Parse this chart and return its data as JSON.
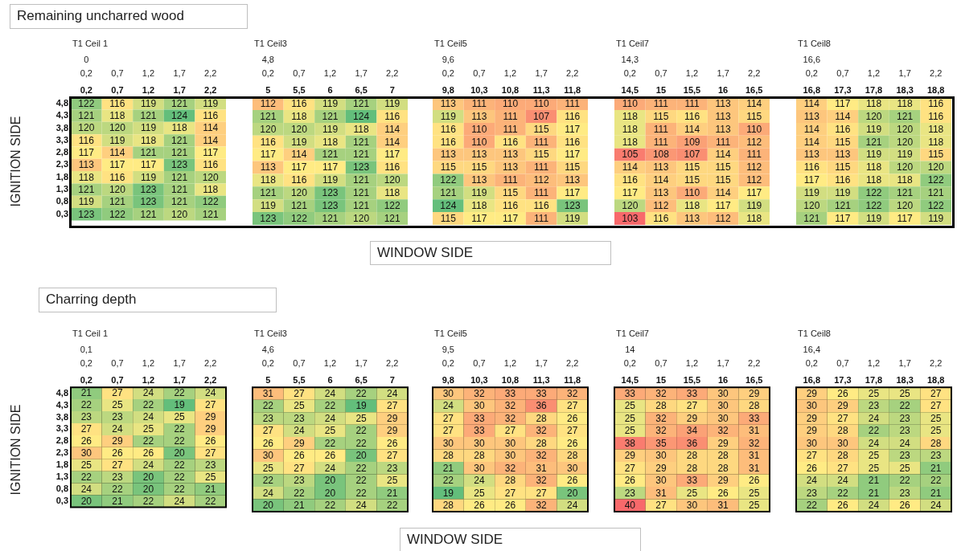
{
  "chart_data": [
    {
      "type": "heatmap",
      "title": "Remaining uncharred wood",
      "ylabel": "IGNITION SIDE",
      "subtitle": "T1 Ceil 1",
      "annotations": [
        "0",
        "0,2",
        "0,7",
        "1,2",
        "1,7",
        "2,2"
      ],
      "categories": [
        "0,2",
        "0,7",
        "1,2",
        "1,7",
        "2,2"
      ],
      "y_categories": [
        "4,8",
        "4,3",
        "3,8",
        "3,3",
        "2,8",
        "2,3",
        "1,8",
        "1,3",
        "0,8",
        "0,3"
      ],
      "data_labels": true,
      "grid": false,
      "colors": [
        "#f8696b",
        "#ffeb84",
        "#63be7b"
      ],
      "cells": [
        [
          122,
          116,
          119,
          121,
          119
        ],
        [
          121,
          118,
          121,
          124,
          116
        ],
        [
          120,
          120,
          119,
          118,
          114
        ],
        [
          116,
          119,
          118,
          121,
          114
        ],
        [
          117,
          114,
          121,
          121,
          117
        ],
        [
          113,
          117,
          117,
          123,
          116
        ],
        [
          118,
          116,
          119,
          121,
          120
        ],
        [
          121,
          120,
          123,
          121,
          118
        ],
        [
          119,
          121,
          123,
          121,
          122
        ],
        [
          123,
          122,
          121,
          120,
          121
        ]
      ]
    },
    {
      "type": "heatmap",
      "subtitle": "T1 Ceil3",
      "annotations": [
        "4,8",
        "0,2",
        "0,7",
        "1,2",
        "1,7",
        "2,2"
      ],
      "categories": [
        "5",
        "5,5",
        "6",
        "6,5",
        "7"
      ],
      "y_categories": [
        "4,8",
        "4,3",
        "3,8",
        "3,3",
        "2,8",
        "2,3",
        "1,8",
        "1,3",
        "0,8",
        "0,3"
      ],
      "tick_labels": "x",
      "data_labels": true,
      "grid": false,
      "colors": [
        "#f8696b",
        "#ffeb84",
        "#63be7b"
      ],
      "cells": [
        [
          112,
          116,
          119,
          121,
          119
        ],
        [
          121,
          118,
          121,
          124,
          116
        ],
        [
          120,
          120,
          119,
          118,
          114
        ],
        [
          116,
          119,
          118,
          121,
          114
        ],
        [
          117,
          114,
          121,
          121,
          117
        ],
        [
          113,
          117,
          117,
          123,
          116
        ],
        [
          118,
          116,
          119,
          121,
          120
        ],
        [
          121,
          120,
          123,
          121,
          118
        ],
        [
          119,
          121,
          123,
          121,
          122
        ],
        [
          123,
          122,
          121,
          120,
          121
        ]
      ]
    },
    {
      "type": "heatmap",
      "xlabel": "WINDOW SIDE",
      "subtitle": "T1 Ceil5",
      "annotations": [
        "9,6",
        "0,2",
        "0,7",
        "1,2",
        "1,7",
        "2,2"
      ],
      "categories": [
        "9,8",
        "10,3",
        "10,8",
        "11,3",
        "11,8"
      ],
      "y_categories": [
        "4,8",
        "4,3",
        "3,8",
        "3,3",
        "2,8",
        "2,3",
        "1,8",
        "1,3",
        "0,8",
        "0,3"
      ],
      "tick_labels": "x",
      "data_labels": true,
      "grid": false,
      "colors": [
        "#f8696b",
        "#ffeb84",
        "#63be7b"
      ],
      "cells": [
        [
          113,
          111,
          110,
          110,
          111
        ],
        [
          119,
          113,
          111,
          107,
          116
        ],
        [
          116,
          110,
          111,
          115,
          117
        ],
        [
          116,
          110,
          116,
          111,
          116
        ],
        [
          113,
          113,
          113,
          115,
          117
        ],
        [
          115,
          115,
          113,
          111,
          115
        ],
        [
          122,
          113,
          111,
          112,
          113
        ],
        [
          121,
          119,
          115,
          111,
          117
        ],
        [
          124,
          118,
          116,
          116,
          123
        ],
        [
          115,
          117,
          117,
          111,
          119
        ]
      ]
    },
    {
      "type": "heatmap",
      "subtitle": "T1 Ceil7",
      "annotations": [
        "14,3",
        "0,2",
        "0,7",
        "1,2",
        "1,7",
        "2,2"
      ],
      "categories": [
        "14,5",
        "15",
        "15,5",
        "16",
        "16,5"
      ],
      "y_categories": [
        "4,8",
        "4,3",
        "3,8",
        "3,3",
        "2,8",
        "2,3",
        "1,8",
        "1,3",
        "0,8",
        "0,3"
      ],
      "tick_labels": "x",
      "data_labels": true,
      "grid": false,
      "colors": [
        "#f8696b",
        "#ffeb84",
        "#63be7b"
      ],
      "cells": [
        [
          110,
          111,
          111,
          113,
          114
        ],
        [
          118,
          115,
          116,
          113,
          115
        ],
        [
          118,
          111,
          114,
          113,
          110
        ],
        [
          118,
          111,
          109,
          111,
          112
        ],
        [
          105,
          108,
          107,
          114,
          111
        ],
        [
          114,
          113,
          115,
          115,
          112
        ],
        [
          116,
          114,
          115,
          115,
          112
        ],
        [
          117,
          113,
          110,
          114,
          117
        ],
        [
          120,
          112,
          118,
          117,
          119
        ],
        [
          103,
          116,
          113,
          112,
          118
        ]
      ]
    },
    {
      "type": "heatmap",
      "subtitle": "T1 Ceil8",
      "annotations": [
        "16,6",
        "0,2",
        "0,7",
        "1,2",
        "1,7",
        "2,2"
      ],
      "categories": [
        "16,8",
        "17,3",
        "17,8",
        "18,3",
        "18,8"
      ],
      "y_categories": [
        "4,8",
        "4,3",
        "3,8",
        "3,3",
        "2,8",
        "2,3",
        "1,8",
        "1,3",
        "0,8",
        "0,3"
      ],
      "tick_labels": "x",
      "data_labels": true,
      "grid": false,
      "colors": [
        "#f8696b",
        "#ffeb84",
        "#63be7b"
      ],
      "cells": [
        [
          114,
          117,
          118,
          118,
          116
        ],
        [
          113,
          114,
          120,
          121,
          116
        ],
        [
          114,
          116,
          119,
          120,
          118
        ],
        [
          114,
          115,
          121,
          120,
          118
        ],
        [
          113,
          113,
          119,
          119,
          115
        ],
        [
          116,
          115,
          118,
          120,
          120
        ],
        [
          117,
          116,
          118,
          118,
          122
        ],
        [
          119,
          119,
          122,
          121,
          121
        ],
        [
          120,
          121,
          122,
          120,
          122
        ],
        [
          121,
          117,
          119,
          117,
          119
        ]
      ]
    },
    {
      "type": "heatmap",
      "title": "Charring depth",
      "ylabel": "IGNITION SIDE",
      "subtitle": "T1 Ceil 1",
      "annotations": [
        "0,1",
        "0,2",
        "0,7",
        "1,2",
        "1,7",
        "2,2"
      ],
      "categories": [
        "0,2",
        "0,7",
        "1,2",
        "1,7",
        "2,2"
      ],
      "y_categories": [
        "4,8",
        "4,3",
        "3,8",
        "3,3",
        "2,8",
        "2,3",
        "1,8",
        "1,3",
        "0,8",
        "0,3"
      ],
      "data_labels": true,
      "grid": true,
      "colors": [
        "#63be7b",
        "#ffeb84",
        "#f8696b"
      ],
      "cells": [
        [
          21,
          27,
          24,
          22,
          24
        ],
        [
          22,
          25,
          22,
          19,
          27
        ],
        [
          23,
          23,
          24,
          25,
          29
        ],
        [
          27,
          24,
          25,
          22,
          29
        ],
        [
          26,
          29,
          22,
          22,
          26
        ],
        [
          30,
          26,
          26,
          20,
          27
        ],
        [
          25,
          27,
          24,
          22,
          23
        ],
        [
          22,
          23,
          20,
          22,
          25
        ],
        [
          24,
          22,
          20,
          22,
          21
        ],
        [
          20,
          21,
          22,
          24,
          22
        ]
      ]
    },
    {
      "type": "heatmap",
      "subtitle": "T1 Ceil3",
      "annotations": [
        "4,6",
        "0,2",
        "0,7",
        "1,2",
        "1,7",
        "2,2"
      ],
      "categories": [
        "5",
        "5,5",
        "6",
        "6,5",
        "7"
      ],
      "y_categories": [
        "4,8",
        "4,3",
        "3,8",
        "3,3",
        "2,8",
        "2,3",
        "1,8",
        "1,3",
        "0,8",
        "0,3"
      ],
      "tick_labels": "x",
      "data_labels": true,
      "grid": true,
      "colors": [
        "#63be7b",
        "#ffeb84",
        "#f8696b"
      ],
      "cells": [
        [
          31,
          27,
          24,
          22,
          24
        ],
        [
          22,
          25,
          22,
          19,
          27
        ],
        [
          23,
          23,
          24,
          25,
          29
        ],
        [
          27,
          24,
          25,
          22,
          29
        ],
        [
          26,
          29,
          22,
          22,
          26
        ],
        [
          30,
          26,
          26,
          20,
          27
        ],
        [
          25,
          27,
          24,
          22,
          23
        ],
        [
          22,
          23,
          20,
          22,
          25
        ],
        [
          24,
          22,
          20,
          22,
          21
        ],
        [
          20,
          21,
          22,
          24,
          22
        ]
      ]
    },
    {
      "type": "heatmap",
      "xlabel": "WINDOW SIDE",
      "subtitle": "T1 Ceil5",
      "annotations": [
        "9,5",
        "0,2",
        "0,7",
        "1,2",
        "1,7",
        "2,2"
      ],
      "categories": [
        "9,8",
        "10,3",
        "10,8",
        "11,3",
        "11,8"
      ],
      "y_categories": [
        "4,8",
        "4,3",
        "3,8",
        "3,3",
        "2,8",
        "2,3",
        "1,8",
        "1,3",
        "0,8",
        "0,3"
      ],
      "tick_labels": "x",
      "data_labels": true,
      "grid": true,
      "colors": [
        "#63be7b",
        "#ffeb84",
        "#f8696b"
      ],
      "cells": [
        [
          30,
          32,
          33,
          33,
          32
        ],
        [
          24,
          30,
          32,
          36,
          27
        ],
        [
          27,
          33,
          32,
          28,
          26
        ],
        [
          27,
          33,
          27,
          32,
          27
        ],
        [
          30,
          30,
          30,
          28,
          26
        ],
        [
          28,
          28,
          30,
          32,
          28
        ],
        [
          21,
          30,
          32,
          31,
          30
        ],
        [
          22,
          24,
          28,
          32,
          26
        ],
        [
          19,
          25,
          27,
          27,
          20
        ],
        [
          28,
          26,
          26,
          32,
          24
        ]
      ]
    },
    {
      "type": "heatmap",
      "subtitle": "T1 Ceil7",
      "annotations": [
        "14",
        "0,2",
        "0,7",
        "1,2",
        "1,7",
        "2,2"
      ],
      "categories": [
        "14,5",
        "15",
        "15,5",
        "16",
        "16,5"
      ],
      "y_categories": [
        "4,8",
        "4,3",
        "3,8",
        "3,3",
        "2,8",
        "2,3",
        "1,8",
        "1,3",
        "0,8",
        "0,3"
      ],
      "tick_labels": "x",
      "data_labels": true,
      "grid": true,
      "colors": [
        "#63be7b",
        "#ffeb84",
        "#f8696b"
      ],
      "cells": [
        [
          33,
          32,
          33,
          30,
          29
        ],
        [
          25,
          28,
          27,
          30,
          28
        ],
        [
          25,
          32,
          29,
          30,
          33
        ],
        [
          25,
          32,
          34,
          32,
          31
        ],
        [
          38,
          35,
          36,
          29,
          32
        ],
        [
          29,
          30,
          28,
          28,
          31
        ],
        [
          27,
          29,
          28,
          28,
          31
        ],
        [
          26,
          30,
          33,
          29,
          26
        ],
        [
          23,
          31,
          25,
          26,
          25
        ],
        [
          40,
          27,
          30,
          31,
          25
        ]
      ]
    },
    {
      "type": "heatmap",
      "subtitle": "T1 Ceil8",
      "annotations": [
        "16,4",
        "0,2",
        "0,7",
        "1,2",
        "1,7",
        "2,2"
      ],
      "categories": [
        "16,8",
        "17,3",
        "17,8",
        "18,3",
        "18,8"
      ],
      "y_categories": [
        "4,8",
        "4,3",
        "3,8",
        "3,3",
        "2,8",
        "2,3",
        "1,8",
        "1,3",
        "0,8",
        "0,3"
      ],
      "tick_labels": "x",
      "data_labels": true,
      "grid": true,
      "colors": [
        "#63be7b",
        "#ffeb84",
        "#f8696b"
      ],
      "cells": [
        [
          29,
          26,
          25,
          25,
          27
        ],
        [
          30,
          29,
          23,
          22,
          27
        ],
        [
          29,
          27,
          24,
          23,
          25
        ],
        [
          29,
          28,
          22,
          23,
          25
        ],
        [
          30,
          30,
          24,
          24,
          28
        ],
        [
          27,
          28,
          25,
          23,
          23
        ],
        [
          26,
          27,
          25,
          25,
          21
        ],
        [
          24,
          24,
          21,
          22,
          22
        ],
        [
          23,
          22,
          21,
          23,
          21
        ],
        [
          22,
          26,
          24,
          26,
          24
        ]
      ]
    }
  ]
}
